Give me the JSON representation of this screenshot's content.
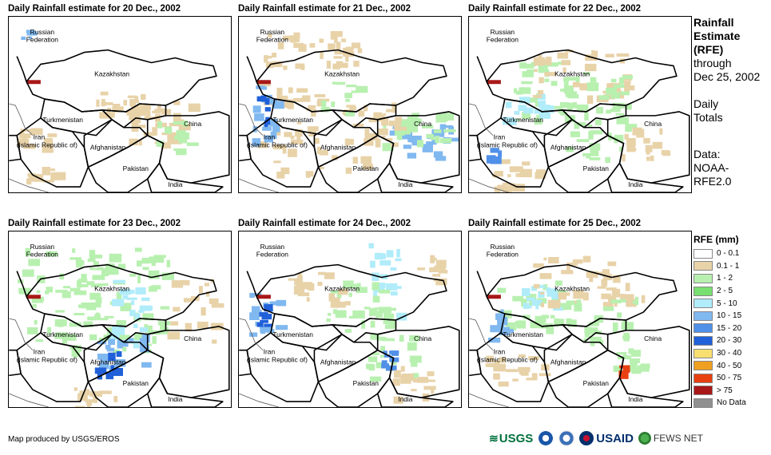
{
  "panels": [
    {
      "title": "Daily Rainfall estimate for 20 Dec., 2002"
    },
    {
      "title": "Daily Rainfall estimate for 21 Dec., 2002"
    },
    {
      "title": "Daily Rainfall estimate for 22 Dec., 2002"
    },
    {
      "title": "Daily Rainfall estimate for 23 Dec., 2002"
    },
    {
      "title": "Daily Rainfall estimate for 24 Dec., 2002"
    },
    {
      "title": "Daily Rainfall estimate for 25 Dec., 2002"
    }
  ],
  "country_labels": {
    "russia_1": "Russian",
    "russia_2": "Federation",
    "kazakhstan": "Kazakhstan",
    "turkmenistan": "Turkmenistan",
    "china": "China",
    "iran_1": "Iran",
    "iran_2": "(Islamic Republic of)",
    "afghanistan": "Afghanistan",
    "pakistan": "Pakistan",
    "india": "India"
  },
  "side": {
    "title_1": "Rainfall",
    "title_2": "Estimate",
    "title_3": "(RFE)",
    "through_1": "through",
    "through_2": "Dec 25, 2002",
    "daily_1": "Daily",
    "daily_2": "Totals",
    "data_1": "Data:",
    "data_2": "NOAA-",
    "data_3": "RFE2.0"
  },
  "legend": {
    "title": "RFE (mm)",
    "items": [
      {
        "label": "0 - 0.1",
        "color": "#ffffff"
      },
      {
        "label": "0.1 - 1",
        "color": "#e8d2a8"
      },
      {
        "label": "1 - 2",
        "color": "#b8f0b0"
      },
      {
        "label": "2 - 5",
        "color": "#78e070"
      },
      {
        "label": "5 - 10",
        "color": "#b0ecfa"
      },
      {
        "label": "10 - 15",
        "color": "#80b8f0"
      },
      {
        "label": "15 - 20",
        "color": "#5090e8"
      },
      {
        "label": "20 - 30",
        "color": "#2060d8"
      },
      {
        "label": "30 - 40",
        "color": "#f8e070"
      },
      {
        "label": "40 - 50",
        "color": "#f0a020"
      },
      {
        "label": "50 - 75",
        "color": "#e84010"
      },
      {
        "label": "> 75",
        "color": "#a81818"
      },
      {
        "label": "No Data",
        "color": "#909090"
      }
    ]
  },
  "credit": "Map produced by USGS/EROS",
  "logos": {
    "usgs": "USGS",
    "usaid": "USAID",
    "fews": "FEWS NET"
  }
}
